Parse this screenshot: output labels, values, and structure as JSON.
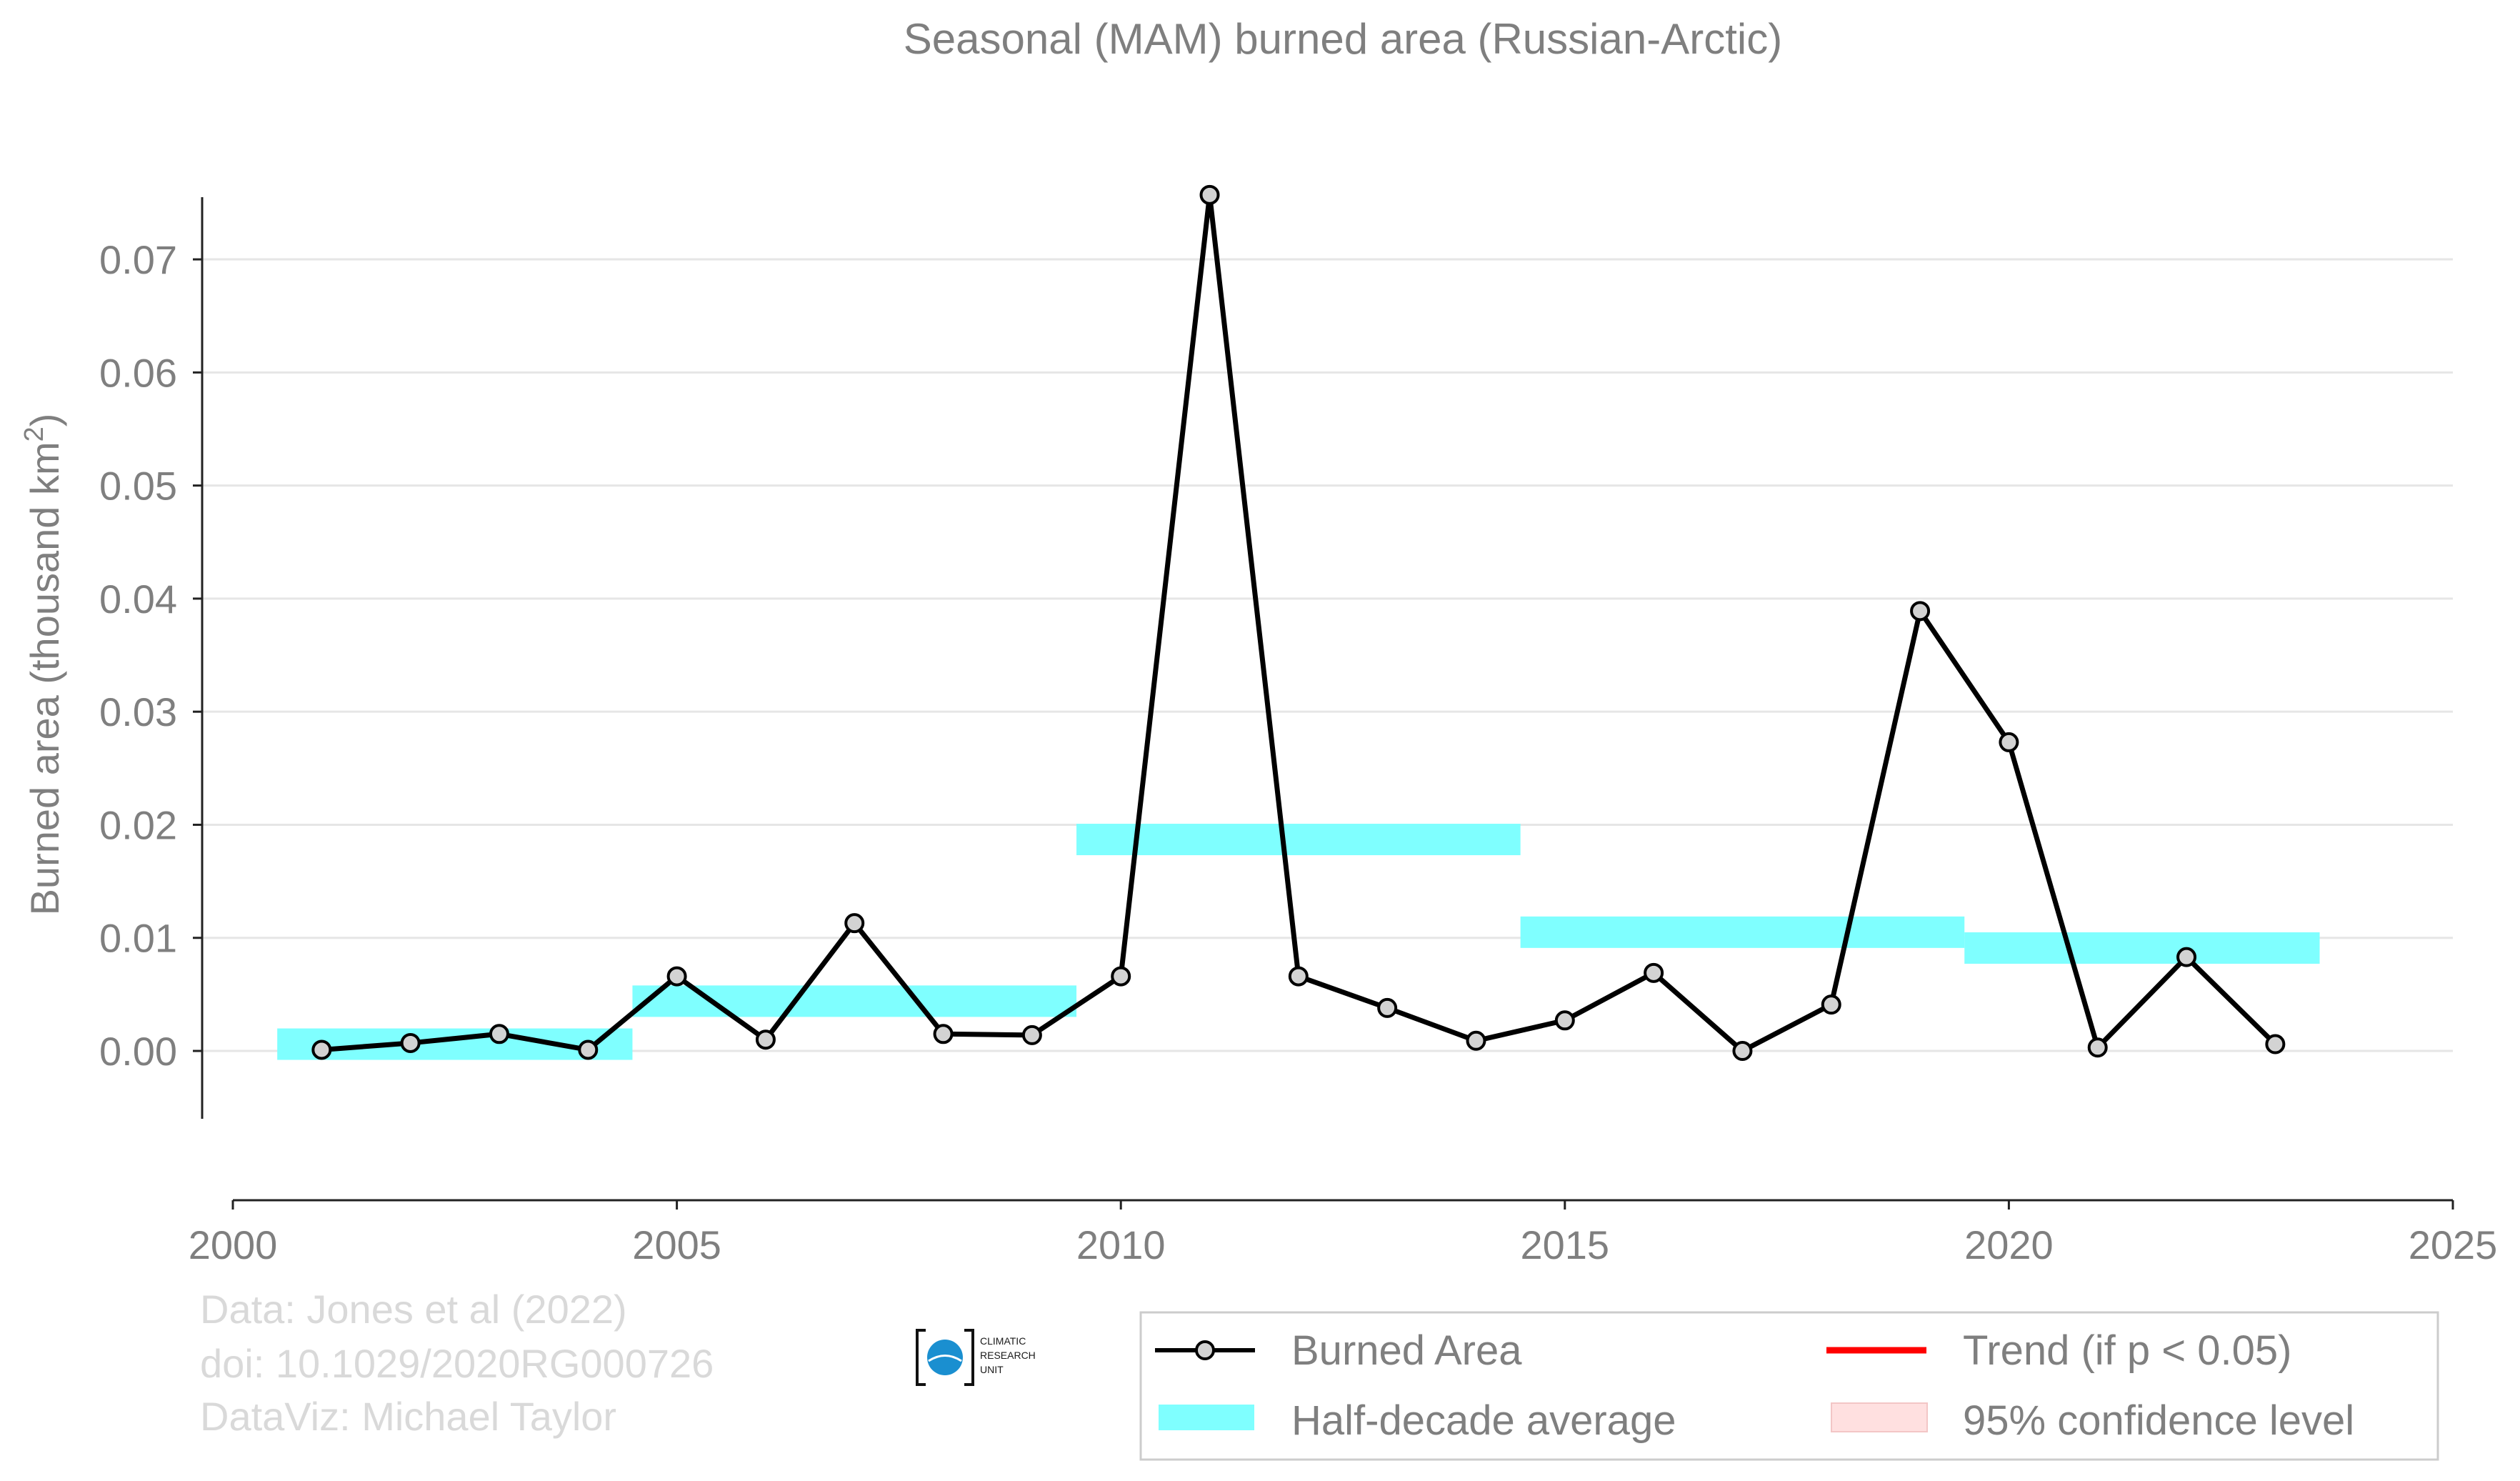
{
  "chart_data": {
    "type": "line",
    "title": "Seasonal (MAM) burned area (Russian-Arctic)",
    "ylabel": "Burned area (thousand km",
    "ylabel_sup": "2",
    "ylabel_end": ")",
    "xlim": [
      2000,
      2025
    ],
    "ylim": [
      -0.006,
      0.0755
    ],
    "xticks": [
      2000,
      2005,
      2010,
      2015,
      2020,
      2025
    ],
    "xtick_labels": [
      "2000",
      "2005",
      "2010",
      "2015",
      "2020",
      "2025"
    ],
    "yticks": [
      0.0,
      0.01,
      0.02,
      0.03,
      0.04,
      0.05,
      0.06,
      0.07
    ],
    "ytick_labels": [
      "0.00",
      "0.01",
      "0.02",
      "0.03",
      "0.04",
      "0.05",
      "0.06",
      "0.07"
    ],
    "grid": "horizontal",
    "series": [
      {
        "name": "Burned Area",
        "color": "#000000",
        "marker_fill": "#d3d3d3",
        "x": [
          2001,
          2002,
          2003,
          2004,
          2005,
          2006,
          2007,
          2008,
          2009,
          2010,
          2011,
          2012,
          2013,
          2014,
          2015,
          2016,
          2017,
          2018,
          2019,
          2020,
          2021,
          2022,
          2023
        ],
        "y": [
          0.0001,
          0.0007,
          0.0015,
          0.0001,
          0.0066,
          0.001,
          0.0113,
          0.0015,
          0.0014,
          0.0066,
          0.0757,
          0.0066,
          0.0038,
          0.0009,
          0.0027,
          0.0069,
          0.0,
          0.0041,
          0.0389,
          0.0273,
          0.0003,
          0.0083,
          0.0006
        ]
      }
    ],
    "half_decade_average": {
      "name": "Half-decade average",
      "color": "#7fffff",
      "segments": [
        {
          "x0": 2000.5,
          "x1": 2004.5,
          "y": 0.0006
        },
        {
          "x0": 2004.5,
          "x1": 2009.5,
          "y": 0.0044
        },
        {
          "x0": 2009.5,
          "x1": 2014.5,
          "y": 0.0187
        },
        {
          "x0": 2014.5,
          "x1": 2019.5,
          "y": 0.0105
        },
        {
          "x0": 2019.5,
          "x1": 2023.5,
          "y": 0.0091
        }
      ]
    },
    "legend": {
      "placement": "bottom-right",
      "entries": [
        {
          "label": "Burned Area",
          "kind": "line-marker",
          "color": "#000000"
        },
        {
          "label": "Trend (if p < 0.05)",
          "kind": "line",
          "color": "#ff0000"
        },
        {
          "label": "Half-decade average",
          "kind": "band",
          "color": "#7fffff"
        },
        {
          "label": "95% confidence level",
          "kind": "patch",
          "color": "#ffe0e0"
        }
      ]
    }
  },
  "credits": {
    "line1": "Data: Jones et al (2022)",
    "line2": "doi: 10.1029/2020RG000726",
    "line3": "DataViz: Michael Taylor"
  },
  "logo": {
    "icon": "cru-globe-icon",
    "line1": "CLIMATIC",
    "line2": "RESEARCH",
    "line3": "UNIT"
  }
}
